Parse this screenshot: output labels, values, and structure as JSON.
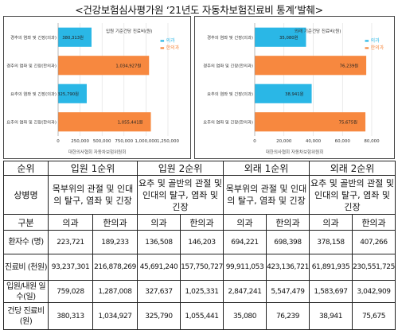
{
  "title": "<건강보험심사평가원 ‘21년도 자동차보험진료비 통계’발췌>",
  "chart_data": [
    {
      "type": "bar",
      "orientation": "horizontal",
      "header": "입원 기준건당 진료비(원)",
      "legend": [
        "의과",
        "한의과"
      ],
      "categories": [
        "경추의 염좌 및 긴장(의과)",
        "경추의 염좌 및 긴장(한의과)",
        "요추의 염좌 및 긴장(의과)",
        "요추의 염좌 및 긴장(한의과)"
      ],
      "values": [
        380313,
        1034927,
        325790,
        1055441
      ],
      "value_labels": [
        "380,313원",
        "1,034,927원",
        "325,790원",
        "1,055,441원"
      ],
      "kinds": [
        "의과",
        "한의과",
        "의과",
        "한의과"
      ],
      "xlim": [
        0,
        1250000
      ],
      "xticks": [
        0,
        250000,
        500000,
        750000,
        1000000,
        1250000
      ],
      "xtick_labels": [
        "0",
        "250,000",
        "500,000",
        "750,000",
        "1,000,000",
        "1,250,000"
      ],
      "caption": "대한의사협회 자동차보험위원회"
    },
    {
      "type": "bar",
      "orientation": "horizontal",
      "header": "외래 기준건당 진료비(원)",
      "legend": [
        "의과",
        "한의과"
      ],
      "categories": [
        "경추의 염좌 및 긴장(의과)",
        "경추의 염좌 및 긴장(한의과)",
        "요추의 염좌 및 긴장(의과)",
        "요추의 염좌 및 긴장(한의과)"
      ],
      "values": [
        35080,
        76239,
        38941,
        75675
      ],
      "value_labels": [
        "35,080원",
        "76,239원",
        "38,941원",
        "75,675원"
      ],
      "kinds": [
        "의과",
        "한의과",
        "의과",
        "한의과"
      ],
      "xlim": [
        0,
        80000
      ],
      "xticks": [
        0,
        20000,
        40000,
        60000,
        80000
      ],
      "xtick_labels": [
        "0",
        "20,000",
        "40,000",
        "60,000",
        "80,000"
      ],
      "caption": "대한의사협회 자동차보험위원회"
    }
  ],
  "colors": {
    "의과": "#2ab7e6",
    "한의과": "#f7883f"
  },
  "table": {
    "rank_label": "순위",
    "rank_headers": [
      "입원 1순위",
      "입원 2순위",
      "외래 1순위",
      "외래 2순위"
    ],
    "name_label": "상병명",
    "names": [
      "목부위의 관절 및 인대의 탈구, 염좌 및 긴장",
      "요추 및 골반의 관절 및 인대의 탈구, 염좌 및 긴장",
      "목부위의 관절 및 인대의 탈구, 염좌 및 긴장",
      "요추 및 골반의 관절 및 인대의 탈구, 염좌 및 긴장"
    ],
    "sub_label": "구분",
    "sub_headers": [
      "의과",
      "한의과",
      "의과",
      "한의과",
      "의과",
      "한의과",
      "의과",
      "한의과"
    ],
    "rows": [
      {
        "label": "환자수 (명)",
        "values": [
          "223,721",
          "189,233",
          "136,508",
          "146,203",
          "694,221",
          "698,398",
          "378,158",
          "407,266"
        ]
      },
      {
        "label": "진료비 (천원)",
        "values": [
          "93,237,301",
          "216,878,269",
          "45,691,240",
          "157,750,727",
          "99,911,053",
          "423,136,721",
          "61,891,935",
          "230,551,725"
        ]
      },
      {
        "label": "입원/내원 일수(일)",
        "values": [
          "759,028",
          "1,287,008",
          "327,637",
          "1,025,331",
          "2,847,241",
          "5,547,479",
          "1,583,697",
          "3,042,909"
        ]
      },
      {
        "label": "건당 진료비(원)",
        "values": [
          "380,313",
          "1,034,927",
          "325,790",
          "1,055,441",
          "35,080",
          "76,239",
          "38,941",
          "75,675"
        ]
      }
    ]
  }
}
